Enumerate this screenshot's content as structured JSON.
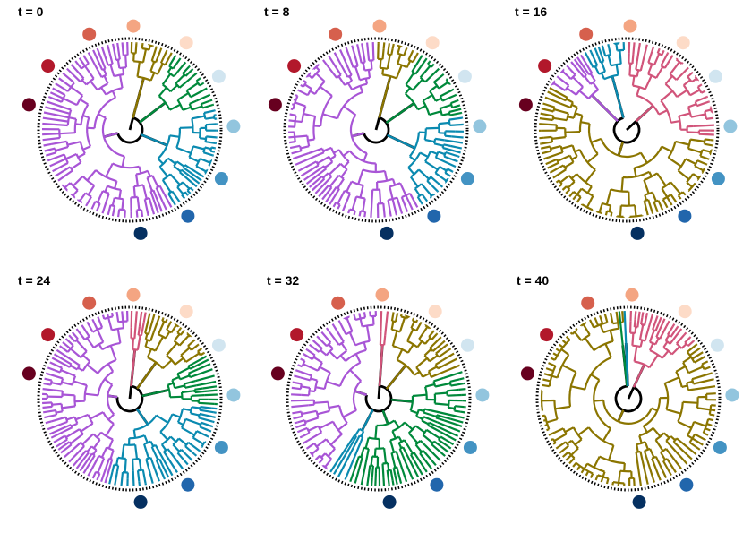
{
  "figure": {
    "panels": [
      {
        "title": "t = 0",
        "dominant": "purple"
      },
      {
        "title": "t = 8",
        "dominant": "purple"
      },
      {
        "title": "t = 16",
        "dominant": "olive"
      },
      {
        "title": "t = 24",
        "dominant": "purple"
      },
      {
        "title": "t = 32",
        "dominant": "purple"
      },
      {
        "title": "t = 40",
        "dominant": "olive"
      }
    ],
    "node_colors": [
      "#67001f",
      "#b2182b",
      "#d6604d",
      "#f4a582",
      "#fddbc7",
      "#d1e5f0",
      "#92c5de",
      "#4393c3",
      "#2166ac",
      "#053061"
    ],
    "branch_colors": {
      "purple": "#a855d6",
      "olive": "#8b7500",
      "green": "#00893b",
      "blue": "#0a8ab0",
      "pink": "#d1547a",
      "black": "#000000"
    }
  }
}
